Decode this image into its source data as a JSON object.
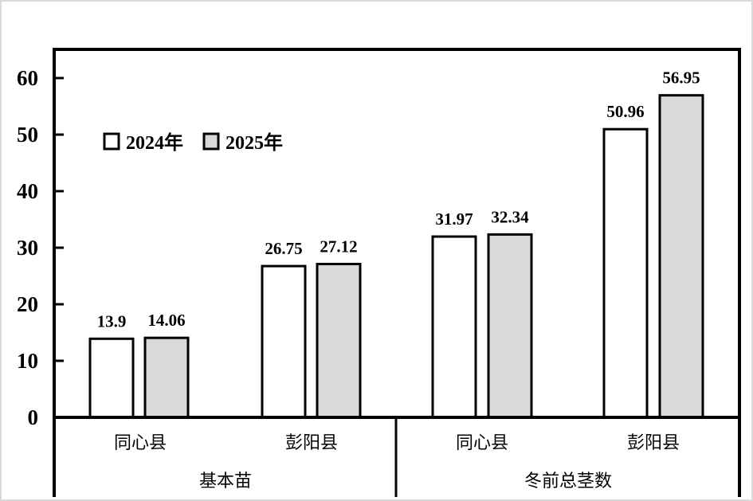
{
  "chart_data": {
    "type": "bar",
    "title": "",
    "xlabel": "",
    "ylabel": "",
    "ylim": [
      0,
      65
    ],
    "yticks": [
      0,
      10,
      20,
      30,
      40,
      50,
      60
    ],
    "groups": [
      {
        "name": "基本苗",
        "categories": [
          "同心县",
          "彭阳县"
        ]
      },
      {
        "name": "冬前总茎数",
        "categories": [
          "同心县",
          "彭阳县"
        ]
      }
    ],
    "series": [
      {
        "name": "2024年",
        "color": "#ffffff",
        "values": [
          13.9,
          26.75,
          31.97,
          50.96
        ],
        "labels": [
          "13.9",
          "26.75",
          "31.97",
          "50.96"
        ]
      },
      {
        "name": "2025年",
        "color": "#d9d9d9",
        "values": [
          14.06,
          27.12,
          32.34,
          56.95
        ],
        "labels": [
          "14.06",
          "27.12",
          "32.34",
          "56.95"
        ]
      }
    ],
    "legend": "top-left",
    "grid": false
  }
}
